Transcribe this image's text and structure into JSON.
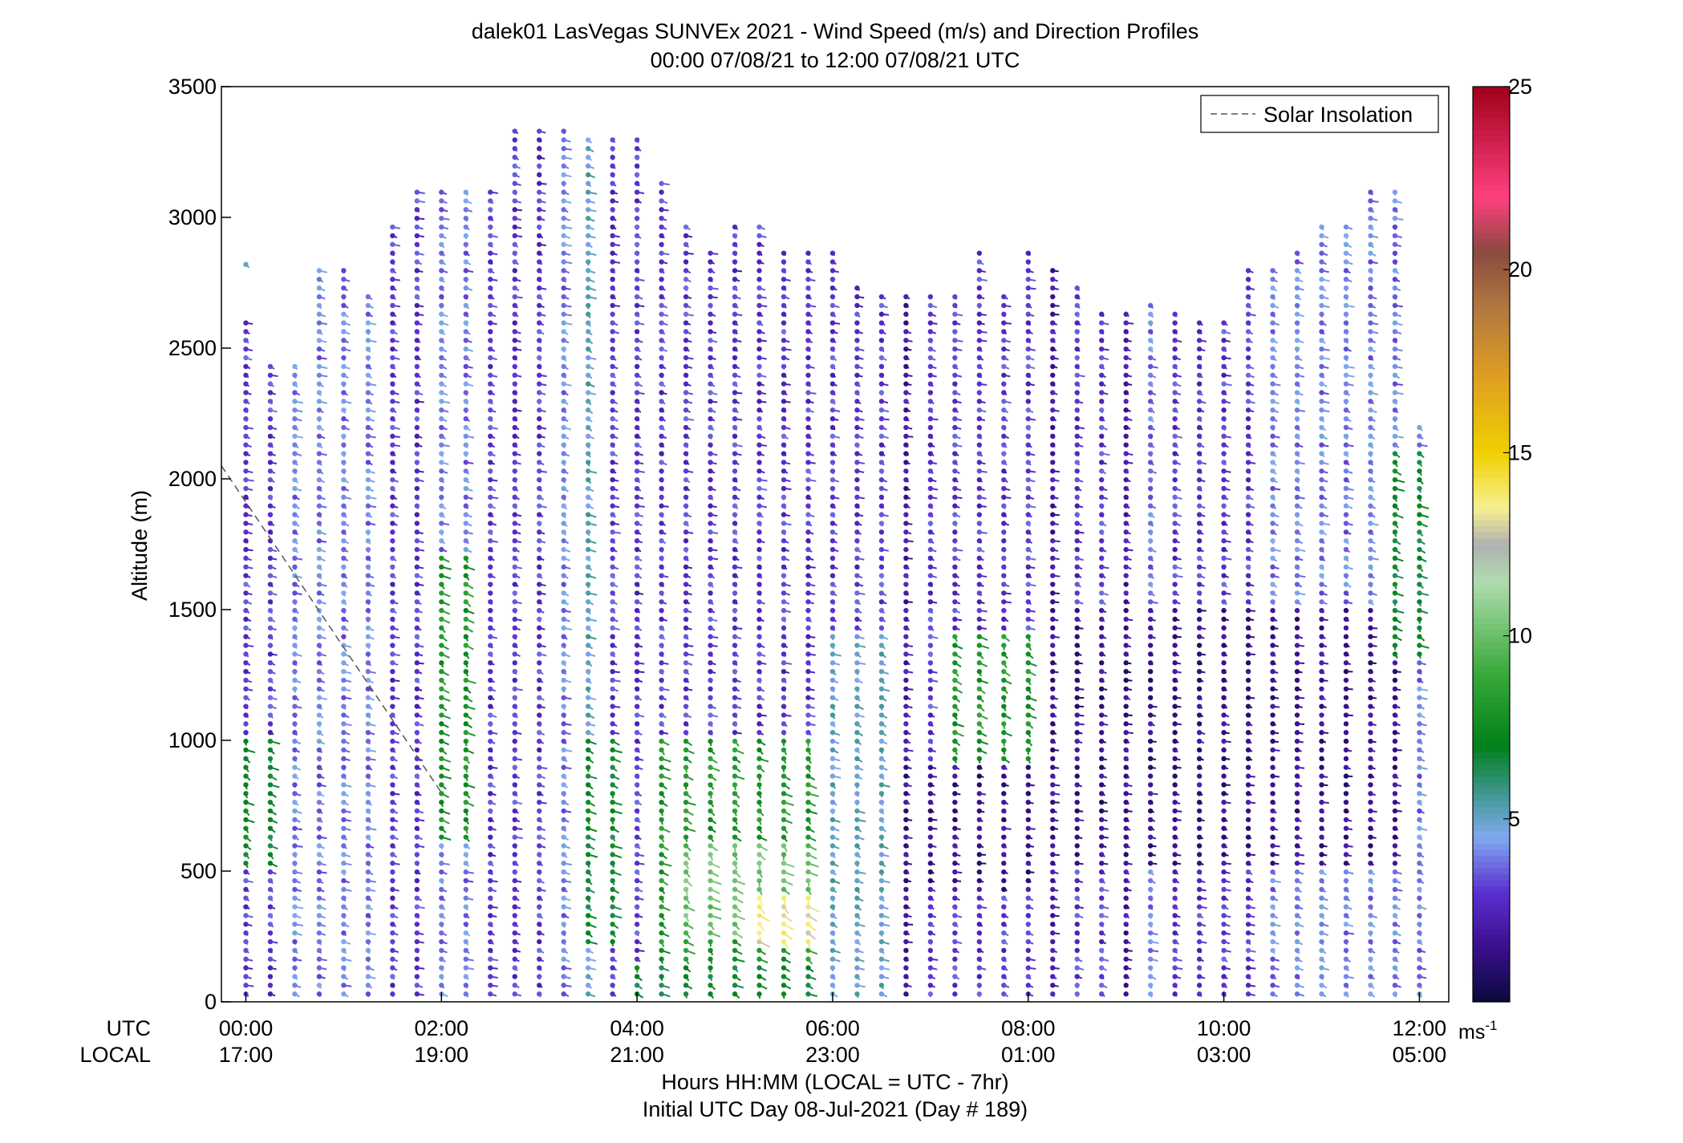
{
  "chart_data": {
    "type": "wind-barb-profile",
    "title": "dalek01 LasVegas SUNVEx 2021 - Wind Speed (m/s) and Direction Profiles",
    "subtitle": "00:00 07/08/21 to 12:00 07/08/21  UTC",
    "ylabel": "Altitude (m)",
    "xlabel": "Hours HH:MM  (LOCAL = UTC - 7hr)",
    "xlabel2": "Initial UTC Day 08-Jul-2021 (Day # 189)",
    "ylim": [
      0,
      3500
    ],
    "yticks": [
      "0",
      "500",
      "1000",
      "1500",
      "2000",
      "2500",
      "3000",
      "3500"
    ],
    "xlim_hours": [
      -0.25,
      12.3
    ],
    "row_labels": {
      "utc": "UTC",
      "local": "LOCAL"
    },
    "xticks": [
      {
        "hour": 0,
        "utc": "00:00",
        "local": "17:00"
      },
      {
        "hour": 2,
        "utc": "02:00",
        "local": "19:00"
      },
      {
        "hour": 4,
        "utc": "04:00",
        "local": "21:00"
      },
      {
        "hour": 6,
        "utc": "06:00",
        "local": "23:00"
      },
      {
        "hour": 8,
        "utc": "08:00",
        "local": "01:00"
      },
      {
        "hour": 10,
        "utc": "10:00",
        "local": "03:00"
      },
      {
        "hour": 12,
        "utc": "12:00",
        "local": "05:00"
      }
    ],
    "legend": {
      "label": "Solar Insolation",
      "placement": "top-right",
      "style": "dashed"
    },
    "solar_insolation_line": [
      [
        -0.25,
        2050
      ],
      [
        2.0,
        800
      ]
    ],
    "colorbar": {
      "range": [
        0,
        25
      ],
      "ticks": [
        "5",
        "10",
        "15",
        "20",
        "25"
      ],
      "unit_label": "ms",
      "unit_exponent": "-1",
      "stops": [
        [
          0,
          "#0a0a3c"
        ],
        [
          1.5,
          "#3a0f8c"
        ],
        [
          3,
          "#5a2fd0"
        ],
        [
          4.5,
          "#80aaf0"
        ],
        [
          5.5,
          "#4a9aa0"
        ],
        [
          7,
          "#00801a"
        ],
        [
          9,
          "#3aaa3a"
        ],
        [
          11.5,
          "#b0dcb0"
        ],
        [
          12.5,
          "#b0b0b0"
        ],
        [
          13.5,
          "#f8f090"
        ],
        [
          15,
          "#f0d000"
        ],
        [
          17,
          "#e0a020"
        ],
        [
          19,
          "#b07840"
        ],
        [
          20.5,
          "#8a4a40"
        ],
        [
          22,
          "#ff4080"
        ],
        [
          25,
          "#a0001a"
        ]
      ]
    },
    "profiles": [
      {
        "hour": 0.0,
        "top": 2600,
        "base_speed": 3,
        "extra": [
          {
            "alt": 2820,
            "speed": 5
          }
        ]
      },
      {
        "hour": 0.25,
        "top": 2450,
        "base_speed": 3
      },
      {
        "hour": 0.5,
        "top": 2450,
        "base_speed": 4
      },
      {
        "hour": 0.75,
        "top": 2800,
        "base_speed": 4
      },
      {
        "hour": 1.0,
        "top": 2820,
        "base_speed": 4
      },
      {
        "hour": 1.25,
        "top": 2700,
        "base_speed": 4
      },
      {
        "hour": 1.5,
        "top": 2980,
        "base_speed": 3
      },
      {
        "hour": 1.75,
        "top": 3120,
        "base_speed": 3
      },
      {
        "hour": 2.0,
        "top": 3120,
        "base_speed": 4
      },
      {
        "hour": 2.25,
        "top": 3120,
        "base_speed": 4
      },
      {
        "hour": 2.5,
        "top": 3120,
        "base_speed": 3
      },
      {
        "hour": 2.75,
        "top": 3360,
        "base_speed": 3
      },
      {
        "hour": 3.0,
        "top": 3360,
        "base_speed": 3
      },
      {
        "hour": 3.25,
        "top": 3360,
        "base_speed": 4
      },
      {
        "hour": 3.5,
        "top": 3300,
        "base_speed": 5
      },
      {
        "hour": 3.75,
        "top": 3300,
        "base_speed": 3
      },
      {
        "hour": 4.0,
        "top": 3300,
        "base_speed": 3
      },
      {
        "hour": 4.25,
        "top": 3160,
        "base_speed": 3
      },
      {
        "hour": 4.5,
        "top": 2980,
        "base_speed": 3
      },
      {
        "hour": 4.75,
        "top": 2880,
        "base_speed": 3
      },
      {
        "hour": 5.0,
        "top": 2980,
        "base_speed": 3
      },
      {
        "hour": 5.25,
        "top": 2980,
        "base_speed": 3
      },
      {
        "hour": 5.5,
        "top": 2880,
        "base_speed": 3
      },
      {
        "hour": 5.75,
        "top": 2880,
        "base_speed": 3
      },
      {
        "hour": 6.0,
        "top": 2880,
        "base_speed": 3
      },
      {
        "hour": 6.25,
        "top": 2740,
        "base_speed": 3
      },
      {
        "hour": 6.5,
        "top": 2700,
        "base_speed": 3
      },
      {
        "hour": 6.75,
        "top": 2700,
        "base_speed": 2
      },
      {
        "hour": 7.0,
        "top": 2700,
        "base_speed": 3
      },
      {
        "hour": 7.25,
        "top": 2700,
        "base_speed": 3
      },
      {
        "hour": 7.5,
        "top": 2880,
        "base_speed": 3
      },
      {
        "hour": 7.75,
        "top": 2700,
        "base_speed": 3
      },
      {
        "hour": 8.0,
        "top": 2880,
        "base_speed": 3
      },
      {
        "hour": 8.25,
        "top": 2820,
        "base_speed": 2
      },
      {
        "hour": 8.5,
        "top": 2750,
        "base_speed": 3
      },
      {
        "hour": 8.75,
        "top": 2650,
        "base_speed": 3
      },
      {
        "hour": 9.0,
        "top": 2650,
        "base_speed": 2
      },
      {
        "hour": 9.25,
        "top": 2680,
        "base_speed": 4
      },
      {
        "hour": 9.5,
        "top": 2650,
        "base_speed": 3
      },
      {
        "hour": 9.75,
        "top": 2600,
        "base_speed": 3
      },
      {
        "hour": 10.0,
        "top": 2600,
        "base_speed": 3
      },
      {
        "hour": 10.25,
        "top": 2800,
        "base_speed": 3
      },
      {
        "hour": 10.5,
        "top": 2800,
        "base_speed": 4
      },
      {
        "hour": 10.75,
        "top": 2880,
        "base_speed": 4
      },
      {
        "hour": 11.0,
        "top": 2980,
        "base_speed": 4
      },
      {
        "hour": 11.25,
        "top": 2980,
        "base_speed": 4
      },
      {
        "hour": 11.5,
        "top": 3120,
        "base_speed": 4
      },
      {
        "hour": 11.75,
        "top": 3120,
        "base_speed": 4
      },
      {
        "hour": 12.0,
        "top": 2200,
        "base_speed": 4
      }
    ],
    "speed_regions": [
      {
        "hours": [
          0.0,
          0.25
        ],
        "alt": [
          500,
          1000
        ],
        "speed": 7
      },
      {
        "hours": [
          2.0,
          2.25
        ],
        "alt": [
          600,
          1700
        ],
        "speed": 8
      },
      {
        "hours": [
          3.5,
          3.75
        ],
        "alt": [
          200,
          1000
        ],
        "speed": 7
      },
      {
        "hours": [
          4.0,
          6.0
        ],
        "alt": [
          0,
          150
        ],
        "speed": 7
      },
      {
        "hours": [
          4.25,
          5.75
        ],
        "alt": [
          150,
          1000
        ],
        "speed": 8
      },
      {
        "hours": [
          4.5,
          5.75
        ],
        "alt": [
          250,
          600
        ],
        "speed": 10
      },
      {
        "hours": [
          5.25,
          5.75
        ],
        "alt": [
          200,
          400
        ],
        "speed": 13.5
      },
      {
        "hours": [
          7.25,
          8.0
        ],
        "alt": [
          800,
          1400
        ],
        "speed": 8
      },
      {
        "hours": [
          6.0,
          6.5
        ],
        "alt": [
          0,
          1400
        ],
        "speed": 5
      },
      {
        "hours": [
          8.25,
          11.75
        ],
        "alt": [
          500,
          1500
        ],
        "speed": 1.5
      },
      {
        "hours": [
          6.75,
          8.0
        ],
        "alt": [
          400,
          900
        ],
        "speed": 1.5
      },
      {
        "hours": [
          11.75,
          12.0
        ],
        "alt": [
          1300,
          2100
        ],
        "speed": 7
      }
    ]
  }
}
